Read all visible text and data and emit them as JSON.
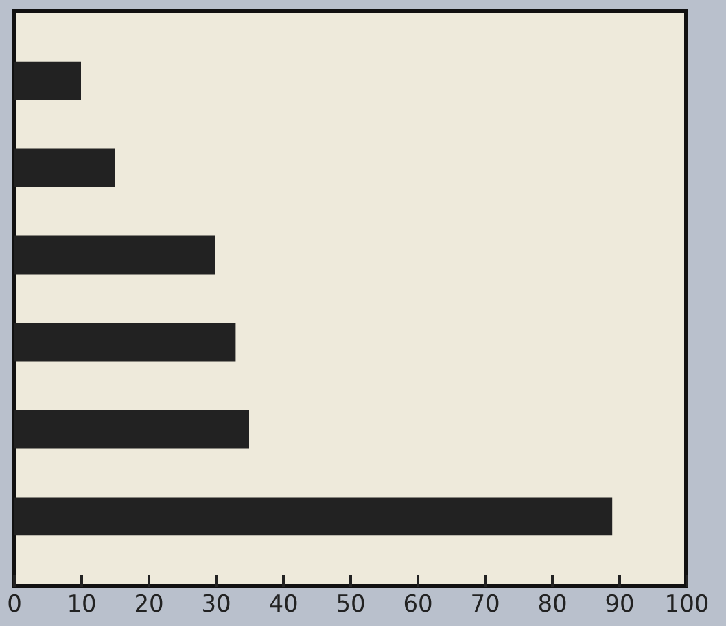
{
  "chart_data": {
    "type": "bar",
    "orientation": "horizontal",
    "categories": [
      null,
      null,
      null,
      null,
      null,
      null
    ],
    "values": [
      10,
      15,
      30,
      33,
      35,
      89
    ],
    "color": "#222222",
    "xlim": [
      0,
      100
    ],
    "xticks": [
      0,
      10,
      20,
      30,
      40,
      50,
      60,
      70,
      80,
      90,
      100
    ],
    "grid": false
  }
}
